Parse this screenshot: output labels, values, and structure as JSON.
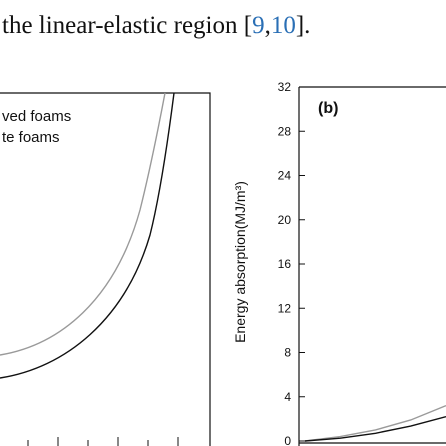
{
  "paper": {
    "sentence_before": "the linear-elastic region [",
    "cite_1": "9",
    "cite_sep": ",",
    "cite_2": "10",
    "sentence_after": "]."
  },
  "panel_a": {
    "legend": [
      "ved foams",
      "te foams"
    ],
    "series_colors": [
      "#9a9a9a",
      "#111111"
    ]
  },
  "chart_data": [
    {
      "type": "line",
      "title": "(b)",
      "ylabel": "Energy absorption(MJ/m³)",
      "ylim": [
        0,
        32
      ],
      "yticks": [
        0,
        4,
        8,
        12,
        16,
        20,
        24,
        28,
        32
      ],
      "series": [
        {
          "color": "#9a9a9a",
          "x": [
            0,
            0.25,
            0.5,
            0.75,
            1.0
          ],
          "y": [
            0,
            0.4,
            1.0,
            1.9,
            3.2
          ]
        },
        {
          "color": "#111111",
          "x": [
            0,
            0.25,
            0.5,
            0.75,
            1.0
          ],
          "y": [
            0,
            0.25,
            0.7,
            1.35,
            2.2
          ]
        }
      ]
    }
  ]
}
